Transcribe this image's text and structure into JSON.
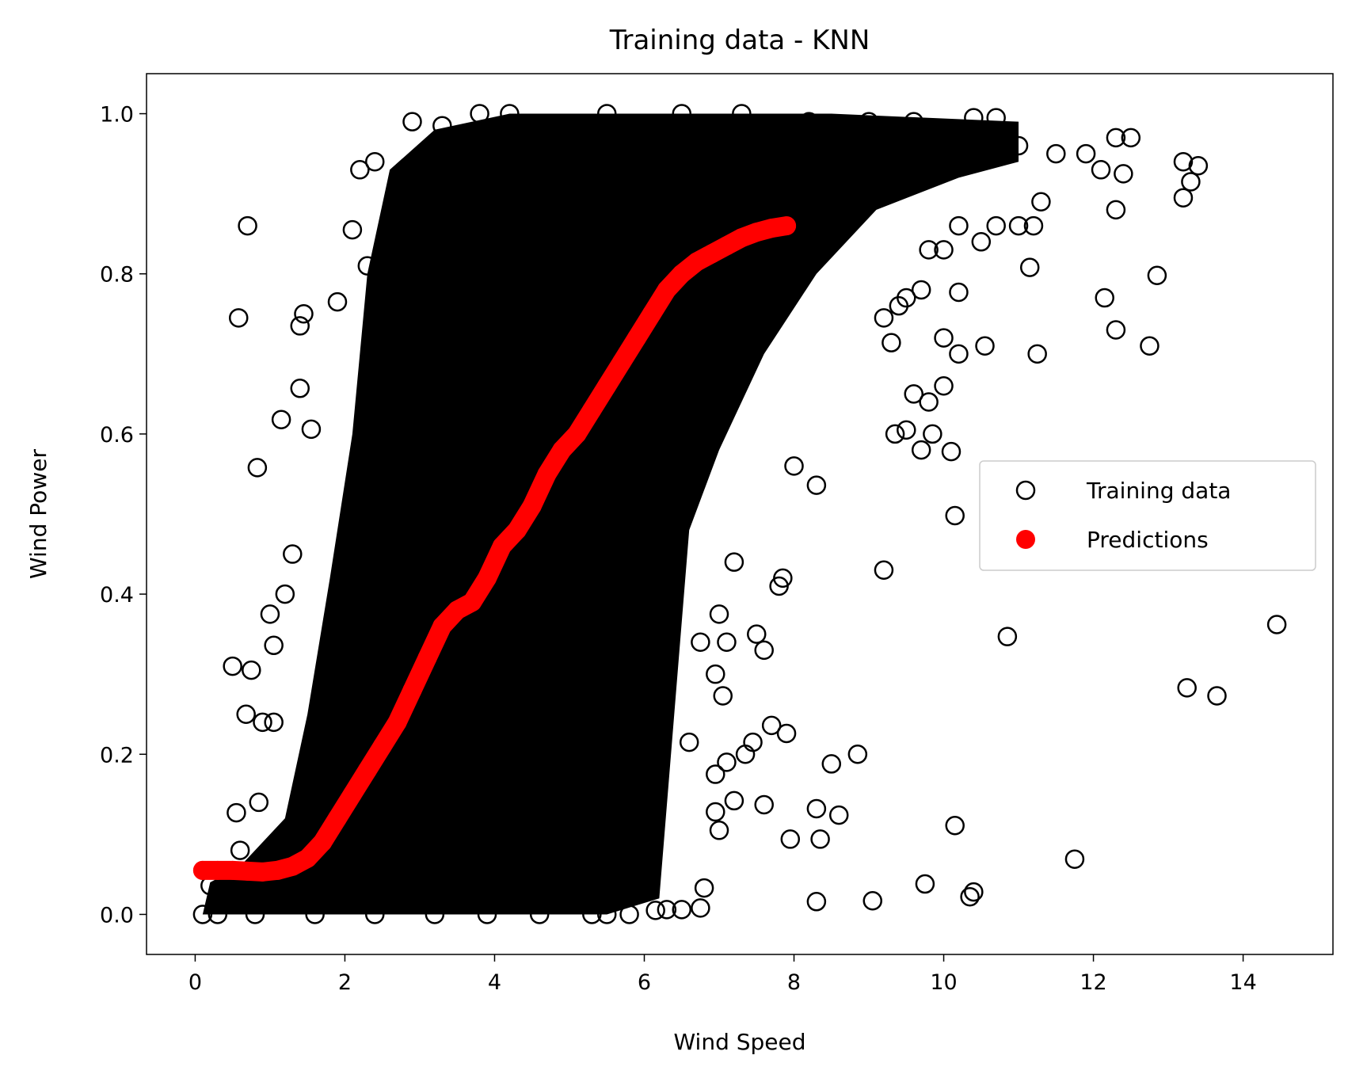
{
  "chart_data": {
    "type": "scatter",
    "title": "Training data - KNN",
    "xlabel": "Wind Speed",
    "ylabel": "Wind Power",
    "xlim": [
      -0.65,
      15.2
    ],
    "ylim": [
      -0.05,
      1.05
    ],
    "xticks": [
      0,
      2,
      4,
      6,
      8,
      10,
      12,
      14
    ],
    "yticks": [
      0.0,
      0.2,
      0.4,
      0.6,
      0.8,
      1.0
    ],
    "xtick_labels": [
      "0",
      "2",
      "4",
      "6",
      "8",
      "10",
      "12",
      "14"
    ],
    "ytick_labels": [
      "0.0",
      "0.2",
      "0.4",
      "0.6",
      "0.8",
      "1.0"
    ],
    "grid": false,
    "legend_position": "center-right",
    "series": [
      {
        "name": "Training data",
        "marker": "open-circle",
        "color": "#000000",
        "points": [
          [
            0.7,
            0.86
          ],
          [
            0.58,
            0.745
          ],
          [
            1.45,
            0.75
          ],
          [
            1.4,
            0.735
          ],
          [
            1.4,
            0.657
          ],
          [
            1.15,
            0.618
          ],
          [
            0.83,
            0.558
          ],
          [
            1.55,
            0.606
          ],
          [
            1.0,
            0.375
          ],
          [
            1.05,
            0.336
          ],
          [
            0.5,
            0.31
          ],
          [
            0.75,
            0.305
          ],
          [
            0.68,
            0.25
          ],
          [
            1.05,
            0.24
          ],
          [
            0.9,
            0.24
          ],
          [
            0.85,
            0.14
          ],
          [
            0.55,
            0.127
          ],
          [
            0.6,
            0.08
          ],
          [
            0.2,
            0.036
          ],
          [
            0.1,
            0.0
          ],
          [
            1.2,
            0.4
          ],
          [
            1.3,
            0.45
          ],
          [
            1.9,
            0.765
          ],
          [
            2.1,
            0.855
          ],
          [
            2.2,
            0.93
          ],
          [
            2.3,
            0.81
          ],
          [
            2.4,
            0.94
          ],
          [
            2.9,
            0.99
          ],
          [
            3.3,
            0.985
          ],
          [
            3.8,
            1.0
          ],
          [
            4.2,
            1.0
          ],
          [
            5.5,
            1.0
          ],
          [
            6.5,
            1.0
          ],
          [
            7.3,
            1.0
          ],
          [
            8.2,
            0.99
          ],
          [
            9.0,
            0.99
          ],
          [
            9.6,
            0.99
          ],
          [
            10.4,
            0.995
          ],
          [
            10.7,
            0.995
          ],
          [
            11.0,
            0.96
          ],
          [
            11.5,
            0.95
          ],
          [
            11.9,
            0.95
          ],
          [
            12.1,
            0.93
          ],
          [
            12.3,
            0.97
          ],
          [
            12.5,
            0.97
          ],
          [
            13.2,
            0.94
          ],
          [
            13.3,
            0.915
          ],
          [
            13.2,
            0.895
          ],
          [
            13.4,
            0.935
          ],
          [
            12.3,
            0.88
          ],
          [
            12.4,
            0.925
          ],
          [
            11.2,
            0.86
          ],
          [
            11.3,
            0.89
          ],
          [
            11.0,
            0.86
          ],
          [
            10.7,
            0.86
          ],
          [
            10.5,
            0.84
          ],
          [
            10.2,
            0.86
          ],
          [
            11.15,
            0.808
          ],
          [
            12.85,
            0.798
          ],
          [
            12.15,
            0.77
          ],
          [
            12.3,
            0.73
          ],
          [
            12.75,
            0.71
          ],
          [
            11.25,
            0.7
          ],
          [
            10.55,
            0.71
          ],
          [
            10.2,
            0.7
          ],
          [
            10.0,
            0.72
          ],
          [
            10.2,
            0.777
          ],
          [
            9.7,
            0.78
          ],
          [
            9.8,
            0.83
          ],
          [
            10.0,
            0.83
          ],
          [
            9.5,
            0.77
          ],
          [
            9.4,
            0.76
          ],
          [
            9.2,
            0.745
          ],
          [
            9.3,
            0.714
          ],
          [
            9.6,
            0.65
          ],
          [
            9.8,
            0.64
          ],
          [
            10.0,
            0.66
          ],
          [
            9.35,
            0.6
          ],
          [
            9.5,
            0.605
          ],
          [
            9.7,
            0.58
          ],
          [
            9.85,
            0.6
          ],
          [
            10.1,
            0.578
          ],
          [
            10.15,
            0.498
          ],
          [
            9.2,
            0.43
          ],
          [
            8.3,
            0.536
          ],
          [
            8.0,
            0.56
          ],
          [
            7.85,
            0.42
          ],
          [
            7.8,
            0.41
          ],
          [
            7.5,
            0.35
          ],
          [
            7.6,
            0.33
          ],
          [
            10.85,
            0.347
          ],
          [
            14.45,
            0.362
          ],
          [
            13.25,
            0.283
          ],
          [
            13.65,
            0.273
          ],
          [
            7.2,
            0.44
          ],
          [
            7.1,
            0.34
          ],
          [
            7.0,
            0.375
          ],
          [
            6.95,
            0.3
          ],
          [
            6.75,
            0.34
          ],
          [
            7.05,
            0.273
          ],
          [
            7.7,
            0.236
          ],
          [
            7.9,
            0.226
          ],
          [
            7.45,
            0.215
          ],
          [
            7.35,
            0.2
          ],
          [
            7.1,
            0.19
          ],
          [
            6.95,
            0.175
          ],
          [
            6.6,
            0.215
          ],
          [
            8.5,
            0.188
          ],
          [
            8.85,
            0.2
          ],
          [
            7.2,
            0.142
          ],
          [
            7.6,
            0.137
          ],
          [
            6.95,
            0.128
          ],
          [
            7.0,
            0.105
          ],
          [
            7.95,
            0.094
          ],
          [
            8.35,
            0.094
          ],
          [
            8.3,
            0.132
          ],
          [
            8.6,
            0.124
          ],
          [
            10.15,
            0.111
          ],
          [
            11.75,
            0.069
          ],
          [
            9.75,
            0.038
          ],
          [
            10.4,
            0.028
          ],
          [
            10.35,
            0.022
          ],
          [
            9.05,
            0.017
          ],
          [
            8.3,
            0.016
          ],
          [
            6.8,
            0.033
          ],
          [
            6.75,
            0.008
          ],
          [
            6.5,
            0.006
          ],
          [
            6.3,
            0.006
          ],
          [
            6.15,
            0.005
          ],
          [
            5.8,
            0.0
          ],
          [
            5.5,
            0.0
          ],
          [
            5.3,
            0.0
          ],
          [
            4.6,
            0.0
          ],
          [
            3.9,
            0.0
          ],
          [
            3.2,
            0.0
          ],
          [
            2.4,
            0.0
          ],
          [
            1.6,
            0.0
          ],
          [
            0.8,
            0.0
          ],
          [
            0.3,
            0.0
          ]
        ]
      },
      {
        "name": "Predictions",
        "marker": "filled-circle",
        "color": "#ff0000",
        "points": [
          [
            0.1,
            0.055
          ],
          [
            0.3,
            0.055
          ],
          [
            0.5,
            0.055
          ],
          [
            0.7,
            0.054
          ],
          [
            0.9,
            0.053
          ],
          [
            1.1,
            0.055
          ],
          [
            1.3,
            0.06
          ],
          [
            1.5,
            0.07
          ],
          [
            1.7,
            0.09
          ],
          [
            1.9,
            0.12
          ],
          [
            2.1,
            0.15
          ],
          [
            2.3,
            0.18
          ],
          [
            2.5,
            0.21
          ],
          [
            2.7,
            0.24
          ],
          [
            2.9,
            0.28
          ],
          [
            3.1,
            0.32
          ],
          [
            3.3,
            0.36
          ],
          [
            3.5,
            0.38
          ],
          [
            3.7,
            0.39
          ],
          [
            3.9,
            0.42
          ],
          [
            4.1,
            0.46
          ],
          [
            4.3,
            0.48
          ],
          [
            4.5,
            0.51
          ],
          [
            4.7,
            0.55
          ],
          [
            4.9,
            0.58
          ],
          [
            5.1,
            0.6
          ],
          [
            5.3,
            0.63
          ],
          [
            5.5,
            0.66
          ],
          [
            5.7,
            0.69
          ],
          [
            5.9,
            0.72
          ],
          [
            6.1,
            0.75
          ],
          [
            6.3,
            0.78
          ],
          [
            6.5,
            0.8
          ],
          [
            6.7,
            0.815
          ],
          [
            6.9,
            0.825
          ],
          [
            7.1,
            0.835
          ],
          [
            7.3,
            0.845
          ],
          [
            7.5,
            0.852
          ],
          [
            7.7,
            0.857
          ],
          [
            7.9,
            0.86
          ]
        ]
      }
    ]
  }
}
